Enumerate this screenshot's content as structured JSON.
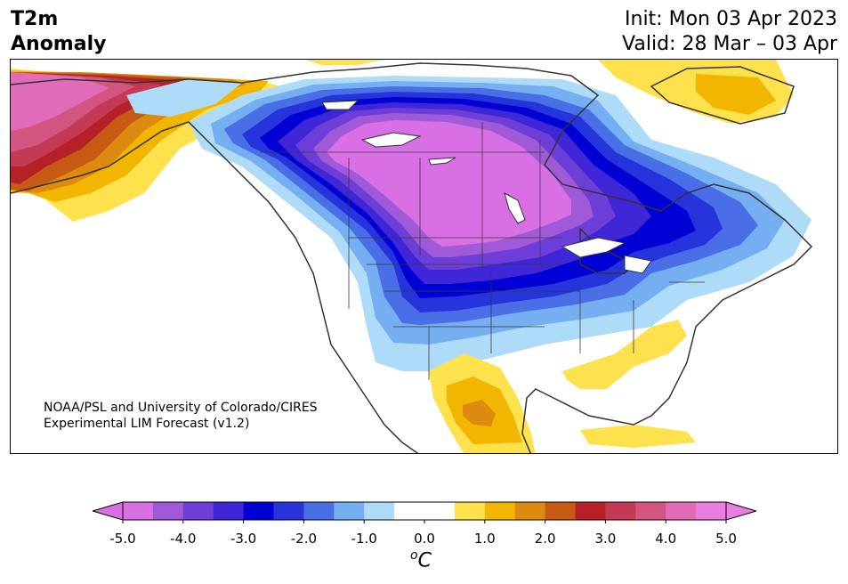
{
  "title": {
    "line1": "T2m",
    "line2": "Anomaly"
  },
  "dates": {
    "init": "Init: Mon 03 Apr 2023",
    "valid": "Valid: 28 Mar – 03 Apr"
  },
  "credit": {
    "line1": "NOAA/PSL and University of Colorado/CIRES",
    "line2": "Experimental LIM Forecast (v1.2)"
  },
  "colorbar": {
    "unit_base": "C",
    "unit_sup": "o",
    "tick_labels": [
      "-5.0",
      "-4.0",
      "-3.0",
      "-2.0",
      "-1.0",
      "0.0",
      "1.0",
      "2.0",
      "3.0",
      "4.0",
      "5.0"
    ],
    "colors": [
      "#d86fe4",
      "#a05ad8",
      "#6e3ed8",
      "#3f26d6",
      "#0000d4",
      "#2634dc",
      "#4a6ee6",
      "#76aef2",
      "#aedcf8",
      "#ffffff",
      "#ffffff",
      "#fee24d",
      "#f2b600",
      "#dd8a10",
      "#c85b14",
      "#b52126",
      "#c43a55",
      "#d25681",
      "#e06bb8",
      "#ea7de0"
    ],
    "extend_low_color": "#d86fe4",
    "extend_high_color": "#ea7de0"
  },
  "map": {
    "projection": "lambert-conformal",
    "region": "North America",
    "ocean_color": "#ffffff"
  }
}
